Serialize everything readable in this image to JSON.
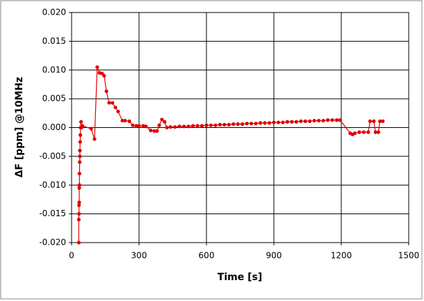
{
  "chart_data": {
    "type": "line",
    "xlabel": "Time [s]",
    "ylabel": "ΔF [ppm] @10MHz",
    "xlim": [
      0,
      1500
    ],
    "xticks": [
      0,
      300,
      600,
      900,
      1200,
      1500
    ],
    "ylim": [
      -0.02,
      0.02
    ],
    "yticks": [
      {
        "value": -0.02,
        "label": "-0.020"
      },
      -0.015,
      {
        "value": -0.01,
        "label": "-0.010"
      },
      -0.005,
      {
        "value": 0,
        "label": "0.000"
      },
      0.005,
      {
        "value": 0.01,
        "label": "0.010"
      },
      0.015,
      {
        "value": 0.02,
        "label": "0.020"
      }
    ],
    "grid": true,
    "series": [
      {
        "color": "#e00000",
        "x": [
          32,
          32,
          33,
          33,
          34,
          34,
          35,
          35,
          36,
          37,
          37,
          38,
          39,
          40,
          42,
          44,
          48,
          87,
          102,
          114,
          124,
          136,
          145,
          155,
          167,
          182,
          195,
          207,
          226,
          238,
          257,
          272,
          288,
          300,
          319,
          331,
          352,
          368,
          380,
          390,
          402,
          414,
          424,
          440,
          460,
          480,
          500,
          520,
          540,
          560,
          580,
          600,
          620,
          640,
          660,
          680,
          700,
          720,
          740,
          760,
          780,
          800,
          820,
          840,
          860,
          880,
          900,
          920,
          940,
          960,
          980,
          1000,
          1020,
          1040,
          1060,
          1080,
          1100,
          1120,
          1140,
          1160,
          1180,
          1195,
          1240,
          1250,
          1260,
          1280,
          1300,
          1320,
          1328,
          1345,
          1352,
          1365,
          1372,
          1385
        ],
        "values": [
          -0.02,
          -0.016,
          -0.015,
          -0.0135,
          -0.013,
          -0.0105,
          -0.01,
          -0.008,
          -0.006,
          -0.005,
          -0.004,
          -0.0025,
          -0.0013,
          0,
          0.001,
          0,
          0.0003,
          -0.0002,
          -0.002,
          0.0105,
          0.0095,
          0.0094,
          0.009,
          0.0063,
          0.0043,
          0.0043,
          0.0035,
          0.0028,
          0.0012,
          0.0012,
          0.0011,
          0.0004,
          0.0003,
          0.0003,
          0.0003,
          0.0002,
          -0.0005,
          -0.0006,
          -0.0006,
          0.0004,
          0.0014,
          0.001,
          0,
          0.0001,
          0.0001,
          0.0002,
          0.0002,
          0.0002,
          0.0003,
          0.0003,
          0.0003,
          0.0004,
          0.0004,
          0.0004,
          0.0005,
          0.0005,
          0.0005,
          0.0006,
          0.0006,
          0.0006,
          0.0007,
          0.0007,
          0.0007,
          0.0008,
          0.0008,
          0.0008,
          0.0009,
          0.0009,
          0.0009,
          0.001,
          0.001,
          0.001,
          0.0011,
          0.0011,
          0.0011,
          0.0012,
          0.0012,
          0.0012,
          0.0013,
          0.0013,
          0.0013,
          0.0013,
          -0.001,
          -0.0012,
          -0.001,
          -0.0008,
          -0.0008,
          -0.0008,
          0.0011,
          0.0011,
          -0.0008,
          -0.0008,
          0.0011,
          0.0011
        ]
      }
    ]
  }
}
